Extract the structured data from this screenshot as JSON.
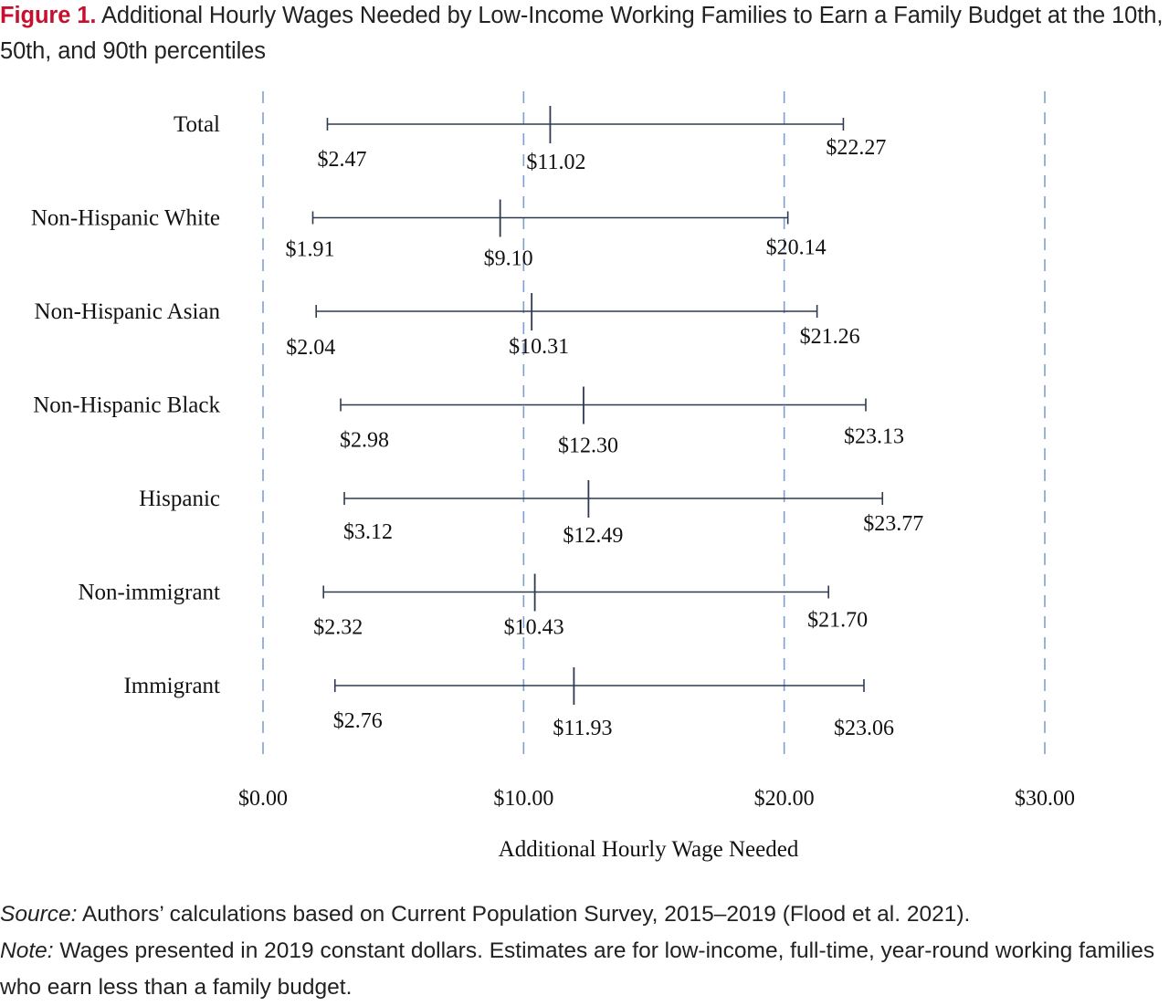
{
  "title": {
    "label": "Figure 1.",
    "text": "Additional Hourly Wages Needed by Low-Income Working Families to Earn a Family Budget at the 10th, 50th, and 90th percentiles"
  },
  "chart_data": {
    "type": "range",
    "title": "Additional Hourly Wages Needed by Low-Income Working Families to Earn a Family Budget at the 10th, 50th, and 90th percentiles",
    "xlabel": "Additional Hourly Wage Needed",
    "xlim": [
      0,
      30
    ],
    "xticks": [
      {
        "value": 0,
        "label": "$0.00"
      },
      {
        "value": 10,
        "label": "$10.00"
      },
      {
        "value": 20,
        "label": "$20.00"
      },
      {
        "value": 30,
        "label": "$30.00"
      }
    ],
    "grid": "vertical dashed",
    "categories": [
      "Total",
      "Non-Hispanic White",
      "Non-Hispanic Asian",
      "Non-Hispanic Black",
      "Hispanic",
      "Non-immigrant",
      "Immigrant"
    ],
    "series": [
      {
        "name": "10th",
        "values": [
          2.47,
          1.91,
          2.04,
          2.98,
          3.12,
          2.32,
          2.76
        ],
        "labels": [
          "$2.47",
          "$1.91",
          "$2.04",
          "$2.98",
          "$3.12",
          "$2.32",
          "$2.76"
        ]
      },
      {
        "name": "50th",
        "values": [
          11.02,
          9.1,
          10.31,
          12.3,
          12.49,
          10.43,
          11.93
        ],
        "labels": [
          "$11.02",
          "$9.10",
          "$10.31",
          "$12.30",
          "$12.49",
          "$10.43",
          "$11.93"
        ]
      },
      {
        "name": "90th",
        "values": [
          22.27,
          20.14,
          21.26,
          23.13,
          23.77,
          21.7,
          23.06
        ],
        "labels": [
          "$22.27",
          "$20.14",
          "$21.26",
          "$23.13",
          "$23.77",
          "$21.70",
          "$23.06"
        ]
      }
    ],
    "colors": {
      "range_line": "#2f3a4f",
      "grid": "#7f9fcf"
    }
  },
  "footer": {
    "source_lead": "Source:",
    "source_text": " Authors’ calculations based on Current Population Survey, 2015–2019 (Flood et al. 2021).",
    "note_lead": "Note:",
    "note_text": " Wages presented in 2019 constant dollars. Estimates are for low-income, full-time, year-round working families who earn less than a family budget."
  }
}
